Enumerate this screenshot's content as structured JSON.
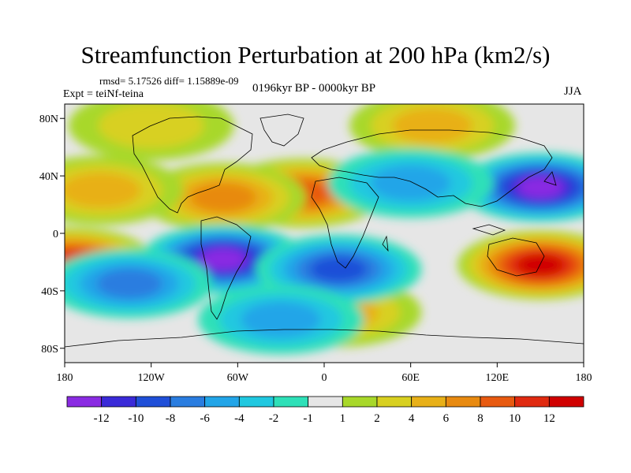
{
  "figure": {
    "title": "Streamfunction Perturbation at 200 hPa (km2/s)",
    "stats": "rmsd= 5.17526  diff= 1.15889e-09",
    "experiment": "Expt = teiNf-teina",
    "period": "0196kyr BP - 0000kyr BP",
    "season": "JJA"
  },
  "axes": {
    "lat_ticks": [
      "80N",
      "40N",
      "0",
      "40S",
      "80S"
    ],
    "lon_ticks": [
      "180",
      "120W",
      "60W",
      "0",
      "60E",
      "120E",
      "180"
    ]
  },
  "colorbar": {
    "labels": [
      "-12",
      "-10",
      "-8",
      "-6",
      "-4",
      "-2",
      "-1",
      "1",
      "2",
      "4",
      "6",
      "8",
      "10",
      "12"
    ],
    "colors": [
      "#8a2be2",
      "#3a2ad8",
      "#1f4fd8",
      "#2a7de0",
      "#22a5e8",
      "#20c8e0",
      "#2ee0b8",
      "#e6e6e6",
      "#a8d82a",
      "#d8d020",
      "#e8b018",
      "#e88a10",
      "#e85a10",
      "#e02a10",
      "#d00000"
    ]
  },
  "chart_data": {
    "type": "heatmap",
    "title": "Streamfunction Perturbation at 200 hPa (km2/s)",
    "x_ticks": [
      "180",
      "120W",
      "60W",
      "0",
      "60E",
      "120E",
      "180"
    ],
    "y_ticks": [
      "80N",
      "40N",
      "0",
      "40S",
      "80S"
    ],
    "xlim": [
      -180,
      180
    ],
    "ylim": [
      -90,
      90
    ],
    "colorbar_levels": [
      -12,
      -10,
      -8,
      -6,
      -4,
      -2,
      -1,
      1,
      2,
      4,
      6,
      8,
      10,
      12
    ],
    "features": [
      {
        "label": "positive",
        "lon": 150,
        "lat": -22,
        "value": 12
      },
      {
        "label": "positive",
        "lon": -175,
        "lat": -20,
        "value": 10
      },
      {
        "label": "positive",
        "lon": -15,
        "lat": 28,
        "value": 9
      },
      {
        "label": "positive",
        "lon": -70,
        "lat": 25,
        "value": 6
      },
      {
        "label": "positive",
        "lon": -155,
        "lat": 30,
        "value": 5
      },
      {
        "label": "positive",
        "lon": 75,
        "lat": 75,
        "value": 4
      },
      {
        "label": "positive",
        "lon": -120,
        "lat": 75,
        "value": 3
      },
      {
        "label": "positive",
        "lon": 10,
        "lat": -55,
        "value": 5
      },
      {
        "label": "negative",
        "lon": 150,
        "lat": 32,
        "value": -12
      },
      {
        "label": "negative",
        "lon": -70,
        "lat": -18,
        "value": -12
      },
      {
        "label": "negative",
        "lon": 10,
        "lat": -25,
        "value": -8
      },
      {
        "label": "negative",
        "lon": -135,
        "lat": -35,
        "value": -6
      },
      {
        "label": "negative",
        "lon": -30,
        "lat": -60,
        "value": -5
      },
      {
        "label": "negative",
        "lon": 60,
        "lat": 35,
        "value": -4
      }
    ]
  }
}
